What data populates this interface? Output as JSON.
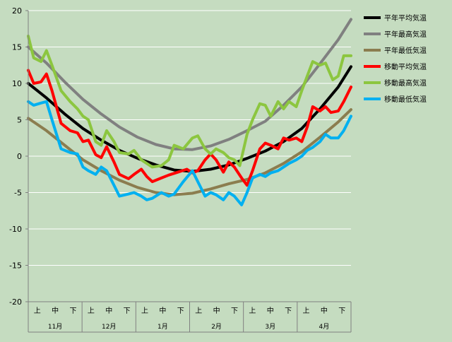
{
  "chart_data": {
    "type": "line",
    "title": "",
    "xlabel": "",
    "ylabel": "",
    "ylim": [
      -20,
      20
    ],
    "y_ticks": [
      -20,
      -15,
      -10,
      -5,
      0,
      5,
      10,
      15,
      20
    ],
    "grid": true,
    "legend_position": "right",
    "x_categories": [
      "上",
      "中",
      "下",
      "上",
      "中",
      "下",
      "上",
      "中",
      "下",
      "上",
      "中",
      "下",
      "上",
      "中",
      "下",
      "上",
      "中",
      "下"
    ],
    "x_groups": [
      "11月",
      "12月",
      "1月",
      "2月",
      "3月",
      "4月"
    ],
    "x_range_days": [
      0,
      177
    ],
    "colors": {
      "background": "#c5dcc0",
      "plot_background": "#c5dcc0",
      "grid": "#ffffff"
    },
    "series": [
      {
        "name": "平年平均気温",
        "color": "#000000",
        "points": [
          [
            0,
            10
          ],
          [
            10,
            8
          ],
          [
            20,
            5.8
          ],
          [
            30,
            3.8
          ],
          [
            40,
            2.2
          ],
          [
            50,
            0.8
          ],
          [
            60,
            -0.3
          ],
          [
            70,
            -1.2
          ],
          [
            80,
            -1.9
          ],
          [
            90,
            -2.1
          ],
          [
            100,
            -1.8
          ],
          [
            110,
            -1.2
          ],
          [
            120,
            -0.3
          ],
          [
            130,
            0.7
          ],
          [
            140,
            2
          ],
          [
            150,
            3.8
          ],
          [
            160,
            6.5
          ],
          [
            170,
            9.5
          ],
          [
            177,
            12.3
          ]
        ]
      },
      {
        "name": "平年最高気温",
        "color": "#808080",
        "points": [
          [
            0,
            15
          ],
          [
            10,
            12.8
          ],
          [
            20,
            10.2
          ],
          [
            30,
            7.8
          ],
          [
            40,
            5.8
          ],
          [
            50,
            4
          ],
          [
            60,
            2.6
          ],
          [
            70,
            1.6
          ],
          [
            80,
            1
          ],
          [
            90,
            0.9
          ],
          [
            100,
            1.4
          ],
          [
            110,
            2.3
          ],
          [
            120,
            3.5
          ],
          [
            130,
            4.8
          ],
          [
            140,
            7
          ],
          [
            150,
            9.5
          ],
          [
            160,
            12.7
          ],
          [
            170,
            16
          ],
          [
            177,
            18.8
          ]
        ]
      },
      {
        "name": "平年最低気温",
        "color": "#8b7d4f",
        "points": [
          [
            0,
            5.2
          ],
          [
            10,
            3.5
          ],
          [
            20,
            1.5
          ],
          [
            30,
            -0.5
          ],
          [
            40,
            -2
          ],
          [
            50,
            -3.3
          ],
          [
            60,
            -4.3
          ],
          [
            70,
            -5
          ],
          [
            80,
            -5.3
          ],
          [
            90,
            -5.1
          ],
          [
            100,
            -4.5
          ],
          [
            110,
            -3.8
          ],
          [
            120,
            -3.2
          ],
          [
            130,
            -2.3
          ],
          [
            140,
            -1
          ],
          [
            150,
            0.6
          ],
          [
            160,
            2.6
          ],
          [
            170,
            4.7
          ],
          [
            177,
            6.4
          ]
        ]
      },
      {
        "name": "移動平均気温",
        "color": "#ff0000",
        "points": [
          [
            0,
            11.8
          ],
          [
            3,
            10
          ],
          [
            7,
            10.2
          ],
          [
            10,
            11.3
          ],
          [
            13,
            9
          ],
          [
            18,
            4.5
          ],
          [
            23,
            3.5
          ],
          [
            27,
            3.2
          ],
          [
            30,
            2
          ],
          [
            33,
            2.2
          ],
          [
            37,
            0.2
          ],
          [
            40,
            -0.2
          ],
          [
            43,
            1.3
          ],
          [
            47,
            -0.8
          ],
          [
            50,
            -2.5
          ],
          [
            55,
            -3.1
          ],
          [
            58,
            -2.5
          ],
          [
            62,
            -1.8
          ],
          [
            65,
            -2.8
          ],
          [
            68,
            -3.5
          ],
          [
            73,
            -3
          ],
          [
            77,
            -2.6
          ],
          [
            82,
            -2.2
          ],
          [
            87,
            -1.8
          ],
          [
            90,
            -2.3
          ],
          [
            93,
            -2
          ],
          [
            97,
            -0.5
          ],
          [
            100,
            0.3
          ],
          [
            103,
            -0.5
          ],
          [
            107,
            -2.2
          ],
          [
            110,
            -0.8
          ],
          [
            113,
            -1.5
          ],
          [
            117,
            -3
          ],
          [
            120,
            -4
          ],
          [
            123,
            -2
          ],
          [
            127,
            1
          ],
          [
            130,
            1.8
          ],
          [
            133,
            1.5
          ],
          [
            137,
            1
          ],
          [
            140,
            2.5
          ],
          [
            143,
            2.2
          ],
          [
            147,
            2.5
          ],
          [
            150,
            2
          ],
          [
            153,
            4
          ],
          [
            156,
            6.8
          ],
          [
            160,
            6.2
          ],
          [
            163,
            6.8
          ],
          [
            166,
            6
          ],
          [
            170,
            6.2
          ],
          [
            173,
            7.5
          ],
          [
            177,
            9.5
          ]
        ]
      },
      {
        "name": "移動最高気温",
        "color": "#8cc63f",
        "points": [
          [
            0,
            16.5
          ],
          [
            3,
            13.5
          ],
          [
            7,
            13
          ],
          [
            10,
            14.5
          ],
          [
            13,
            12.5
          ],
          [
            18,
            9
          ],
          [
            23,
            7.5
          ],
          [
            27,
            6.5
          ],
          [
            30,
            5.5
          ],
          [
            33,
            5
          ],
          [
            37,
            2
          ],
          [
            40,
            1.5
          ],
          [
            43,
            3.5
          ],
          [
            47,
            2
          ],
          [
            50,
            0.5
          ],
          [
            55,
            0.3
          ],
          [
            58,
            0.8
          ],
          [
            62,
            -0.5
          ],
          [
            65,
            -1
          ],
          [
            68,
            -1.5
          ],
          [
            73,
            -1.3
          ],
          [
            77,
            -0.5
          ],
          [
            80,
            1.5
          ],
          [
            85,
            1
          ],
          [
            90,
            2.5
          ],
          [
            93,
            2.8
          ],
          [
            97,
            1
          ],
          [
            100,
            0.3
          ],
          [
            103,
            1
          ],
          [
            107,
            0.5
          ],
          [
            110,
            -0.2
          ],
          [
            113,
            -0.5
          ],
          [
            116,
            -1.3
          ],
          [
            120,
            3
          ],
          [
            123,
            5
          ],
          [
            127,
            7.2
          ],
          [
            130,
            7
          ],
          [
            133,
            5.5
          ],
          [
            137,
            7.5
          ],
          [
            140,
            6.5
          ],
          [
            143,
            7.5
          ],
          [
            147,
            6.8
          ],
          [
            150,
            9
          ],
          [
            153,
            11
          ],
          [
            156,
            13
          ],
          [
            160,
            12.5
          ],
          [
            163,
            12.8
          ],
          [
            167,
            10.5
          ],
          [
            170,
            11
          ],
          [
            173,
            13.8
          ],
          [
            177,
            13.8
          ]
        ]
      },
      {
        "name": "移動最低気温",
        "color": "#00b0f0",
        "points": [
          [
            0,
            7.5
          ],
          [
            3,
            7
          ],
          [
            7,
            7.3
          ],
          [
            10,
            7.5
          ],
          [
            13,
            5
          ],
          [
            18,
            1
          ],
          [
            23,
            0.5
          ],
          [
            27,
            0.3
          ],
          [
            30,
            -1.5
          ],
          [
            33,
            -2
          ],
          [
            37,
            -2.5
          ],
          [
            40,
            -1.5
          ],
          [
            43,
            -2
          ],
          [
            47,
            -4
          ],
          [
            50,
            -5.5
          ],
          [
            55,
            -5.2
          ],
          [
            58,
            -5
          ],
          [
            62,
            -5.5
          ],
          [
            65,
            -6
          ],
          [
            68,
            -5.8
          ],
          [
            73,
            -5
          ],
          [
            77,
            -5.5
          ],
          [
            80,
            -5.2
          ],
          [
            85,
            -3.5
          ],
          [
            90,
            -2
          ],
          [
            93,
            -3.5
          ],
          [
            97,
            -5.5
          ],
          [
            100,
            -5
          ],
          [
            103,
            -5.3
          ],
          [
            107,
            -6
          ],
          [
            110,
            -5
          ],
          [
            113,
            -5.5
          ],
          [
            117,
            -6.7
          ],
          [
            120,
            -5
          ],
          [
            123,
            -3
          ],
          [
            127,
            -2.5
          ],
          [
            130,
            -2.8
          ],
          [
            133,
            -2.3
          ],
          [
            137,
            -2
          ],
          [
            140,
            -1.5
          ],
          [
            143,
            -1
          ],
          [
            147,
            -0.5
          ],
          [
            150,
            0
          ],
          [
            153,
            0.8
          ],
          [
            156,
            1.2
          ],
          [
            160,
            2
          ],
          [
            163,
            3
          ],
          [
            166,
            2.5
          ],
          [
            170,
            2.5
          ],
          [
            173,
            3.5
          ],
          [
            177,
            5.5
          ]
        ]
      }
    ]
  }
}
